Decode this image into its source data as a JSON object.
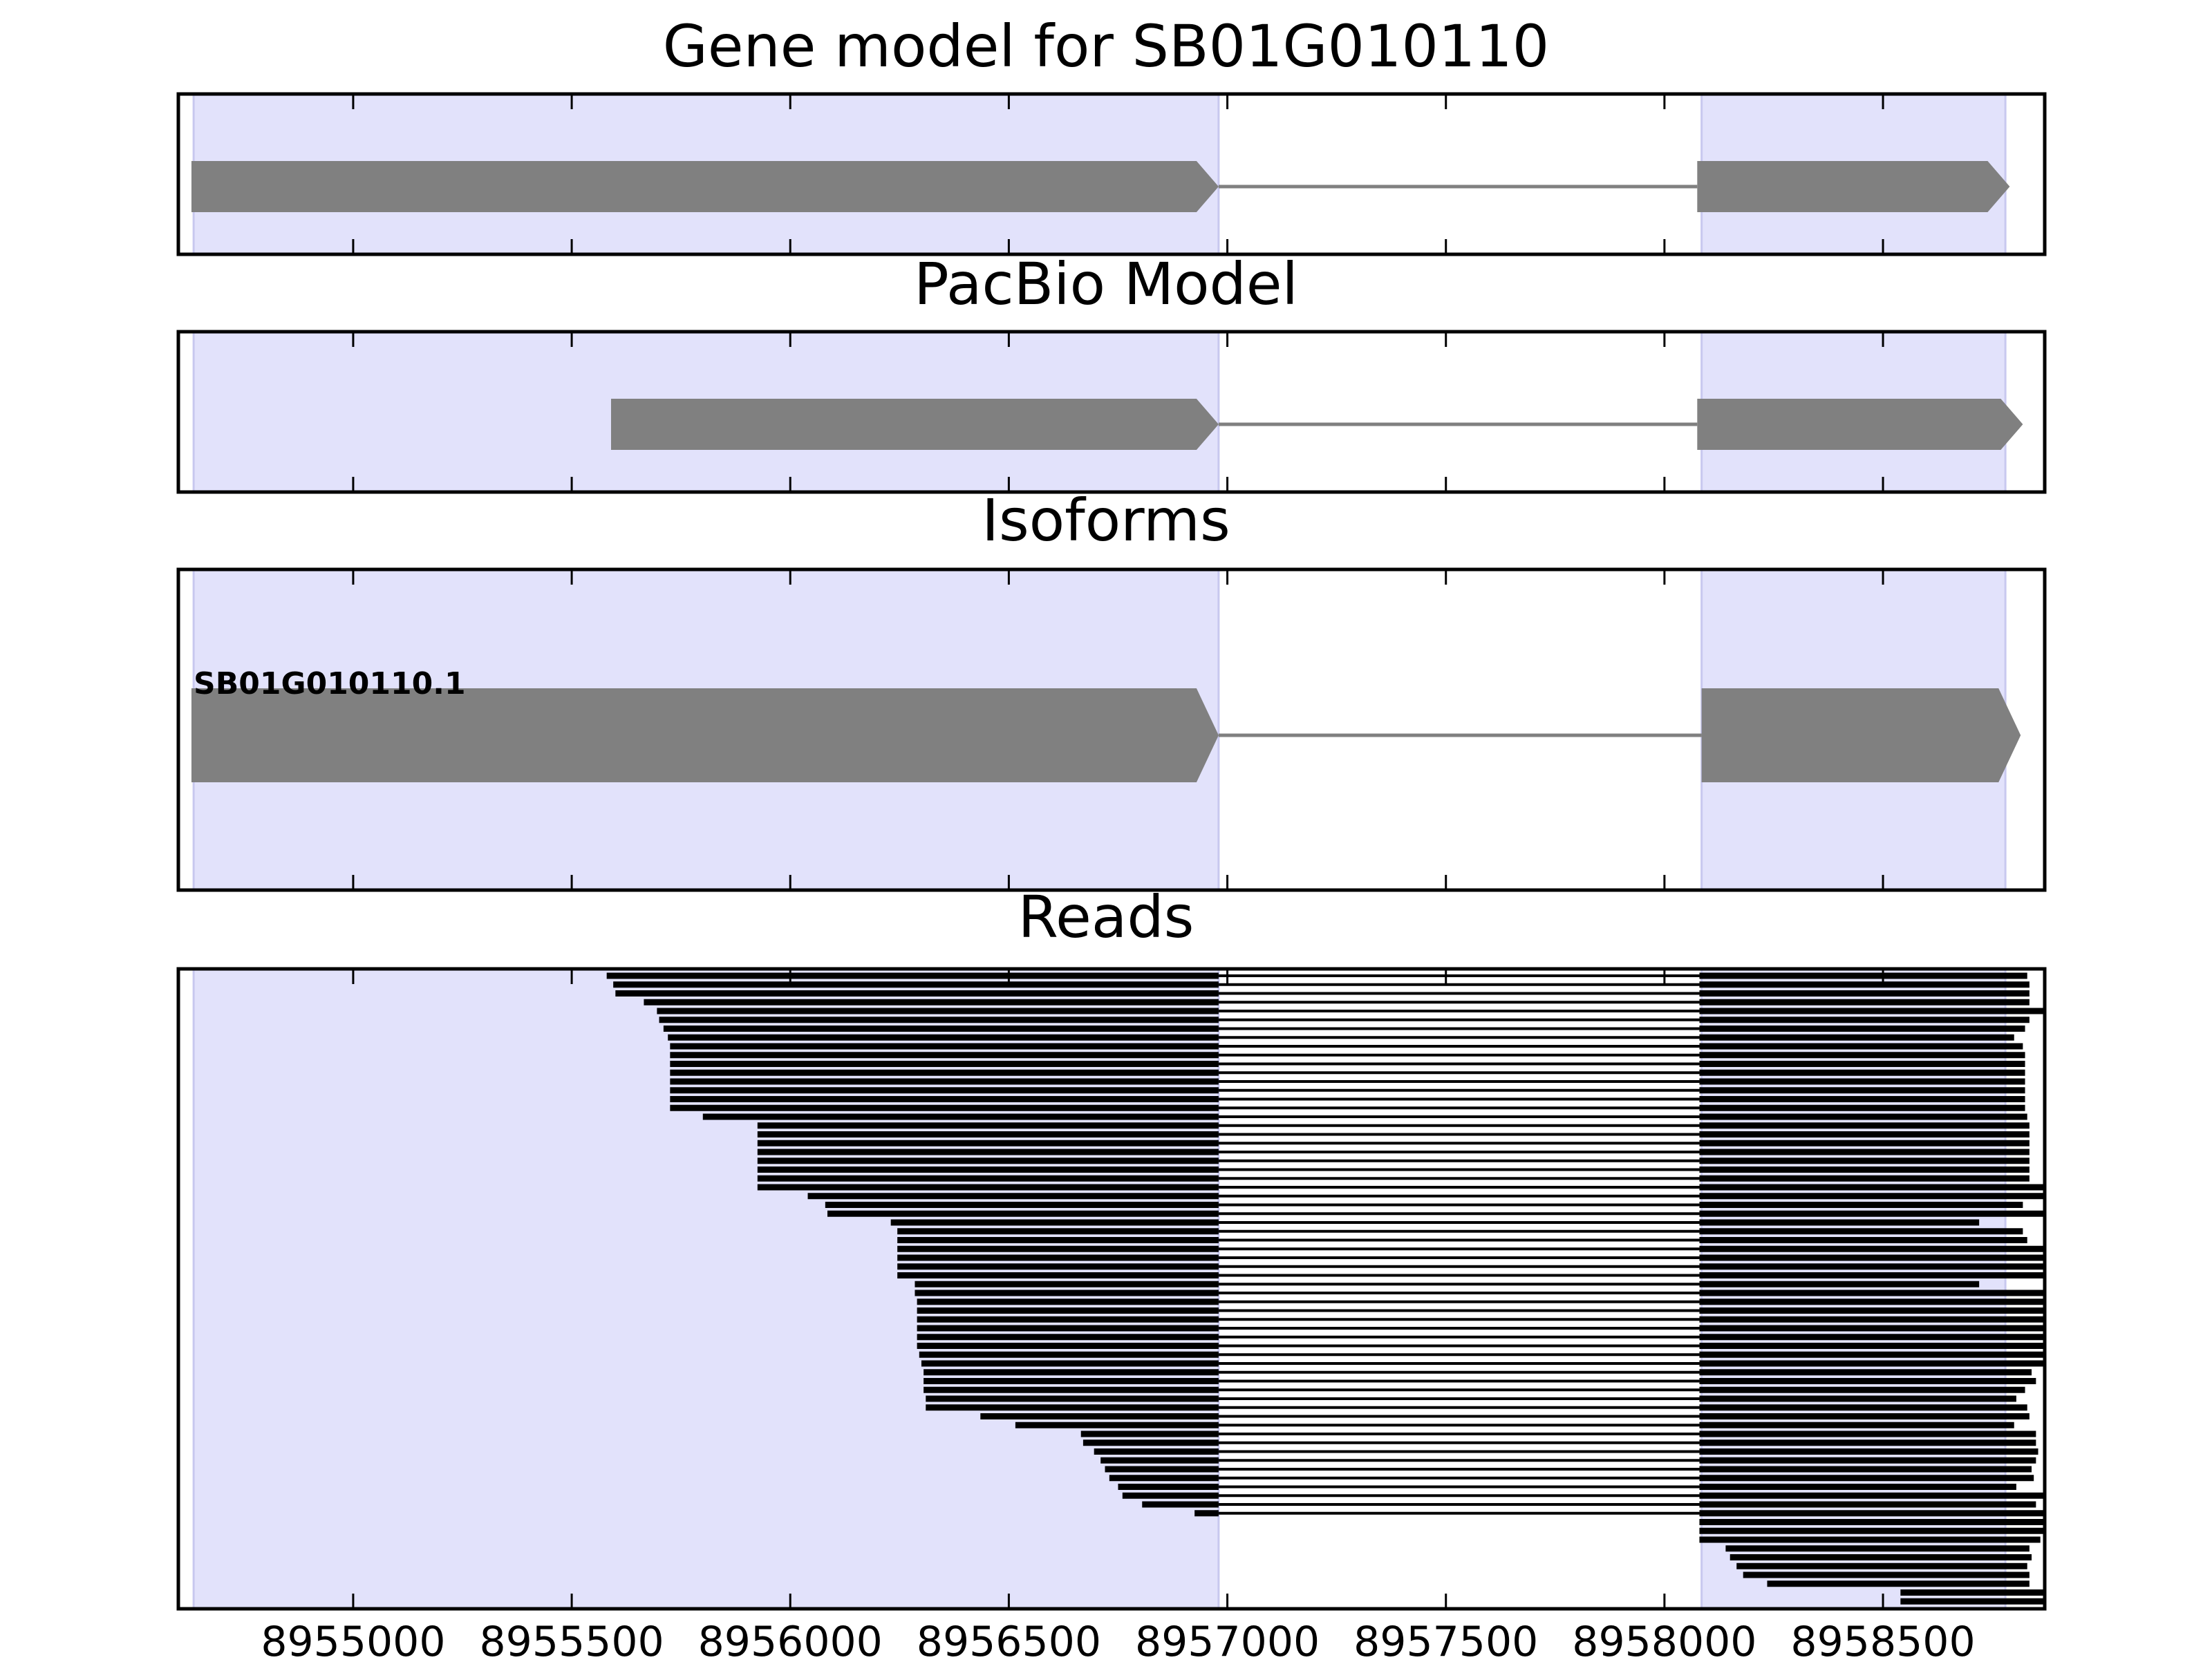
{
  "figure_style": {
    "background": "#ffffff",
    "axes_color": "#000000",
    "exon_color": "#808080",
    "intron_color": "#808080",
    "read_color": "#000000",
    "exon_shade_color": "#e2e2fb",
    "shade_edge_color": "#c8c8ef"
  },
  "chart_data": [
    {
      "type": "gene-track",
      "title": "Gene model for SB01G010110",
      "xlim": [
        8954600,
        8958870
      ],
      "shaded_exons": [
        [
          8954635,
          8956980
        ],
        [
          8958085,
          8958780
        ]
      ],
      "models": [
        {
          "exons": [
            [
              8954630,
              8956980
            ],
            [
              8958075,
              8958790
            ]
          ],
          "strand": "+"
        }
      ]
    },
    {
      "type": "gene-track",
      "title": "PacBio Model",
      "xlim": [
        8954600,
        8958870
      ],
      "shaded_exons": [
        [
          8954635,
          8956980
        ],
        [
          8958085,
          8958780
        ]
      ],
      "models": [
        {
          "exons": [
            [
              8955590,
              8956980
            ],
            [
              8958075,
              8958820
            ]
          ],
          "strand": "+"
        }
      ]
    },
    {
      "type": "gene-track",
      "title": "Isoforms",
      "xlim": [
        8954600,
        8958870
      ],
      "shaded_exons": [
        [
          8954635,
          8956980
        ],
        [
          8958085,
          8958780
        ]
      ],
      "models": [
        {
          "label": "SB01G010110.1",
          "exons": [
            [
              8954630,
              8956980
            ],
            [
              8958085,
              8958815
            ]
          ],
          "strand": "+"
        }
      ]
    },
    {
      "type": "read-alignment",
      "title": "Reads",
      "xlim": [
        8954600,
        8958870
      ],
      "x_ticks": [
        "8955000",
        "8955500",
        "8956000",
        "8956500",
        "8957000",
        "8957500",
        "8958000",
        "8958500"
      ],
      "x_tick_values": [
        8955000,
        8955500,
        8956000,
        8956500,
        8957000,
        8957500,
        8958000,
        8958500
      ],
      "shaded_exons": [
        [
          8954635,
          8956980
        ],
        [
          8958085,
          8958780
        ]
      ],
      "exon1_end": 8956980,
      "exon2_start": 8958080,
      "spliced_reads": [
        [
          8955580,
          8958830
        ],
        [
          8955595,
          8958835
        ],
        [
          8955600,
          8958835
        ],
        [
          8955665,
          8958835
        ],
        [
          8955695,
          8958870
        ],
        [
          8955700,
          8958835
        ],
        [
          8955710,
          8958825
        ],
        [
          8955720,
          8958800
        ],
        [
          8955725,
          8958820
        ],
        [
          8955725,
          8958825
        ],
        [
          8955725,
          8958825
        ],
        [
          8955725,
          8958825
        ],
        [
          8955725,
          8958825
        ],
        [
          8955725,
          8958825
        ],
        [
          8955725,
          8958825
        ],
        [
          8955725,
          8958825
        ],
        [
          8955800,
          8958830
        ],
        [
          8955925,
          8958835
        ],
        [
          8955925,
          8958835
        ],
        [
          8955925,
          8958835
        ],
        [
          8955925,
          8958835
        ],
        [
          8955925,
          8958835
        ],
        [
          8955925,
          8958835
        ],
        [
          8955925,
          8958835
        ],
        [
          8955925,
          8958870
        ],
        [
          8956040,
          8958870
        ],
        [
          8956080,
          8958820
        ],
        [
          8956085,
          8958870
        ],
        [
          8956230,
          8958720
        ],
        [
          8956245,
          8958820
        ],
        [
          8956245,
          8958830
        ],
        [
          8956245,
          8958870
        ],
        [
          8956245,
          8958870
        ],
        [
          8956245,
          8958870
        ],
        [
          8956245,
          8958870
        ],
        [
          8956285,
          8958720
        ],
        [
          8956285,
          8958870
        ],
        [
          8956290,
          8958870
        ],
        [
          8956290,
          8958870
        ],
        [
          8956290,
          8958870
        ],
        [
          8956290,
          8958870
        ],
        [
          8956290,
          8958870
        ],
        [
          8956290,
          8958870
        ],
        [
          8956295,
          8958870
        ],
        [
          8956300,
          8958870
        ],
        [
          8956305,
          8958840
        ],
        [
          8956305,
          8958850
        ],
        [
          8956305,
          8958825
        ],
        [
          8956310,
          8958805
        ],
        [
          8956310,
          8958830
        ],
        [
          8956435,
          8958835
        ],
        [
          8956515,
          8958800
        ],
        [
          8956665,
          8958850
        ],
        [
          8956670,
          8958850
        ],
        [
          8956695,
          8958855
        ],
        [
          8956710,
          8958850
        ],
        [
          8956720,
          8958840
        ],
        [
          8956730,
          8958845
        ],
        [
          8956750,
          8958805
        ],
        [
          8956760,
          8958870
        ],
        [
          8956805,
          8958850
        ],
        [
          8956925,
          8958870
        ]
      ],
      "exon2_only_reads": [
        [
          8958080,
          8958870
        ],
        [
          8958080,
          8958870
        ],
        [
          8958080,
          8958860
        ],
        [
          8958140,
          8958835
        ],
        [
          8958150,
          8958840
        ],
        [
          8958165,
          8958830
        ],
        [
          8958180,
          8958835
        ],
        [
          8958235,
          8958835
        ],
        [
          8958540,
          8958870
        ],
        [
          8958540,
          8958870
        ]
      ]
    }
  ]
}
